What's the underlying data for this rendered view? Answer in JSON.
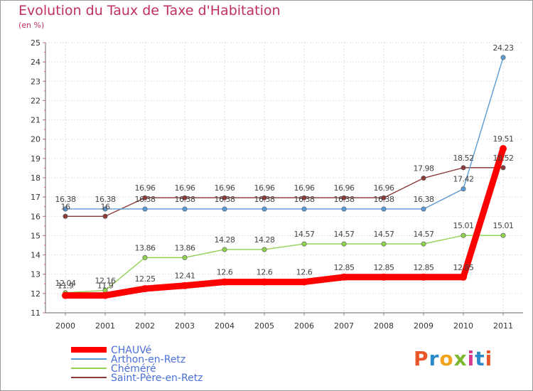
{
  "title": "Evolution du Taux de Taxe d'Habitation",
  "unit": "(en %)",
  "logo": {
    "letters": [
      "P",
      "r",
      "o",
      "x",
      "i",
      "t",
      "i"
    ],
    "colors": [
      "#e8562a",
      "#2a8ac9",
      "#f2a31b",
      "#7cb82f",
      "#d63a8f",
      "#2a8ac9",
      "#e8562a"
    ]
  },
  "chart_data": {
    "type": "line",
    "x": [
      "2000",
      "2001",
      "2002",
      "2003",
      "2004",
      "2005",
      "2006",
      "2007",
      "2008",
      "2009",
      "2010",
      "2011"
    ],
    "ylim": [
      11,
      25
    ],
    "yticks": [
      "11",
      "12",
      "13",
      "14",
      "15",
      "16",
      "17",
      "18",
      "19",
      "20",
      "21",
      "22",
      "23",
      "24",
      "25"
    ],
    "grid": true,
    "legend_position": "bottom-left",
    "series": [
      {
        "name": "CHAUVé",
        "color": "#ff0000",
        "values": [
          11.9,
          11.9,
          12.25,
          12.41,
          12.6,
          12.6,
          12.6,
          12.85,
          12.85,
          12.85,
          12.85,
          19.51
        ],
        "labels": [
          "11.9",
          "11.9",
          "12.25",
          "12.41",
          "12.6",
          "12.6",
          "12.6",
          "12.85",
          "12.85",
          "12.85",
          "12.85",
          "19.51"
        ]
      },
      {
        "name": "Arthon-en-Retz",
        "color": "#5b9bd5",
        "values": [
          16.38,
          16.38,
          16.38,
          16.38,
          16.38,
          16.38,
          16.38,
          16.38,
          16.38,
          16.38,
          17.42,
          24.23
        ],
        "labels": [
          "16.38",
          "16.38",
          "16.38",
          "16.38",
          "16.38",
          "16.38",
          "16.38",
          "16.38",
          "16.38",
          "16.38",
          "17.42",
          "24.23"
        ]
      },
      {
        "name": "Chéméré",
        "color": "#92d050",
        "values": [
          12.04,
          12.16,
          13.86,
          13.86,
          14.28,
          14.28,
          14.57,
          14.57,
          14.57,
          14.57,
          15.01,
          15.01
        ],
        "labels": [
          "12.04",
          "12.16",
          "13.86",
          "13.86",
          "14.28",
          "14.28",
          "14.57",
          "14.57",
          "14.57",
          "14.57",
          "15.01",
          "15.01"
        ]
      },
      {
        "name": "Saint-Père-en-Retz",
        "color": "#8b3a3a",
        "values": [
          16,
          16,
          16.96,
          16.96,
          16.96,
          16.96,
          16.96,
          16.96,
          16.96,
          17.98,
          18.52,
          18.52
        ],
        "labels": [
          "16",
          "16",
          "16.96",
          "16.96",
          "16.96",
          "16.96",
          "16.96",
          "16.96",
          "16.96",
          "17.98",
          "18.52",
          "18.52"
        ]
      }
    ]
  }
}
